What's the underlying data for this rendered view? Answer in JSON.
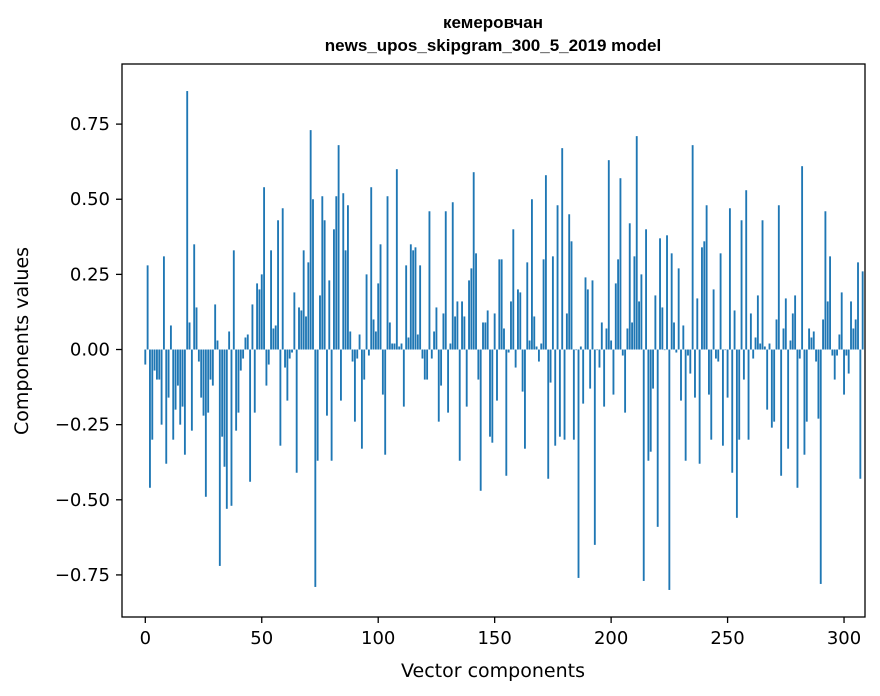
{
  "chart_data": {
    "type": "bar",
    "title_line1": "кемеровчан",
    "title_line2": "news_upos_skipgram_300_5_2019 model",
    "xlabel": "Vector components",
    "ylabel": "Components values",
    "xlim": [
      -10,
      309
    ],
    "ylim": [
      -0.89,
      0.95
    ],
    "xticks": [
      0,
      50,
      100,
      150,
      200,
      250,
      300
    ],
    "yticks": [
      -0.75,
      -0.5,
      -0.25,
      0.0,
      0.25,
      0.5,
      0.75
    ],
    "xtick_labels": [
      "0",
      "50",
      "100",
      "150",
      "200",
      "250",
      "300"
    ],
    "ytick_labels": [
      "−0.75",
      "−0.50",
      "−0.25",
      "0.00",
      "0.25",
      "0.50",
      "0.75"
    ],
    "bar_color": "#1f77b4",
    "grid": false,
    "values": [
      -0.05,
      0.28,
      -0.46,
      -0.3,
      -0.07,
      -0.1,
      -0.1,
      -0.25,
      0.31,
      -0.38,
      -0.16,
      0.08,
      -0.3,
      -0.2,
      -0.12,
      -0.25,
      -0.19,
      -0.35,
      0.86,
      0.09,
      -0.27,
      0.35,
      0.14,
      -0.04,
      -0.16,
      -0.22,
      -0.49,
      -0.21,
      -0.1,
      -0.12,
      0.15,
      0.03,
      -0.72,
      -0.29,
      -0.39,
      -0.53,
      0.06,
      -0.52,
      0.33,
      -0.27,
      -0.21,
      -0.07,
      -0.03,
      0.04,
      0.05,
      -0.44,
      0.15,
      -0.21,
      0.22,
      0.2,
      0.25,
      0.54,
      -0.12,
      -0.05,
      0.33,
      0.07,
      0.08,
      0.43,
      -0.32,
      0.47,
      -0.06,
      -0.17,
      -0.03,
      -0.01,
      0.19,
      -0.41,
      0.14,
      0.13,
      0.33,
      0.11,
      0.29,
      0.73,
      0.5,
      -0.79,
      -0.37,
      0.18,
      0.51,
      0.43,
      -0.22,
      0.23,
      -0.37,
      0.4,
      0.51,
      0.68,
      -0.17,
      0.52,
      0.33,
      0.48,
      0.06,
      -0.04,
      -0.24,
      -0.03,
      0.05,
      -0.33,
      -0.1,
      0.25,
      -0.02,
      0.54,
      0.1,
      0.06,
      0.22,
      0.35,
      -0.15,
      -0.35,
      0.51,
      0.09,
      0.02,
      0.02,
      0.6,
      0.01,
      0.02,
      -0.19,
      0.28,
      0.04,
      0.35,
      0.33,
      0.34,
      0.05,
      0.28,
      -0.03,
      -0.1,
      -0.1,
      0.46,
      -0.03,
      0.06,
      0.14,
      -0.24,
      -0.12,
      0.12,
      0.46,
      -0.21,
      0.02,
      0.49,
      0.11,
      0.16,
      -0.37,
      0.16,
      0.11,
      -0.19,
      0.23,
      0.27,
      0.59,
      0.32,
      -0.1,
      -0.47,
      0.09,
      0.09,
      0.13,
      -0.29,
      -0.31,
      0.12,
      -0.17,
      0.3,
      0.3,
      0.07,
      -0.42,
      -0.01,
      0.16,
      0.4,
      -0.06,
      0.2,
      0.19,
      -0.14,
      -0.33,
      0.29,
      0.03,
      0.5,
      0.11,
      0.01,
      -0.04,
      0.02,
      0.3,
      0.58,
      -0.43,
      -0.11,
      0.31,
      -0.32,
      0.48,
      -0.29,
      0.67,
      -0.3,
      0.12,
      0.45,
      0.36,
      -0.3,
      0.0,
      -0.76,
      0.01,
      -0.18,
      0.24,
      0.2,
      -0.13,
      0.23,
      -0.65,
      0.0,
      -0.06,
      0.09,
      -0.19,
      0.07,
      0.63,
      0.03,
      -0.15,
      0.22,
      0.3,
      0.57,
      -0.02,
      -0.21,
      0.07,
      0.42,
      0.09,
      0.31,
      0.71,
      0.16,
      0.25,
      -0.77,
      0.4,
      -0.37,
      -0.34,
      -0.13,
      0.18,
      -0.59,
      0.37,
      0.14,
      0.0,
      0.38,
      -0.8,
      0.32,
      0.09,
      -0.01,
      0.27,
      -0.17,
      0.08,
      -0.37,
      -0.02,
      -0.08,
      0.68,
      -0.16,
      0.17,
      -0.38,
      0.34,
      0.36,
      0.48,
      -0.15,
      -0.3,
      0.2,
      -0.03,
      -0.04,
      0.32,
      -0.32,
      0.0,
      -0.16,
      0.47,
      -0.41,
      0.13,
      -0.56,
      -0.3,
      0.43,
      -0.1,
      0.53,
      -0.3,
      0.12,
      -0.03,
      0.04,
      0.18,
      0.02,
      0.43,
      0.01,
      -0.2,
      0.02,
      -0.26,
      -0.24,
      0.1,
      0.48,
      -0.42,
      0.07,
      0.17,
      -0.33,
      0.03,
      0.12,
      0.18,
      -0.46,
      -0.03,
      0.61,
      -0.35,
      -0.24,
      0.07,
      0.04,
      0.06,
      -0.04,
      -0.23,
      -0.78,
      0.1,
      0.46,
      0.16,
      0.31,
      -0.02,
      -0.1,
      -0.02,
      0.05,
      0.19,
      -0.15,
      -0.02,
      -0.08,
      0.16,
      0.07,
      0.1,
      0.29,
      -0.43,
      0.26
    ]
  }
}
